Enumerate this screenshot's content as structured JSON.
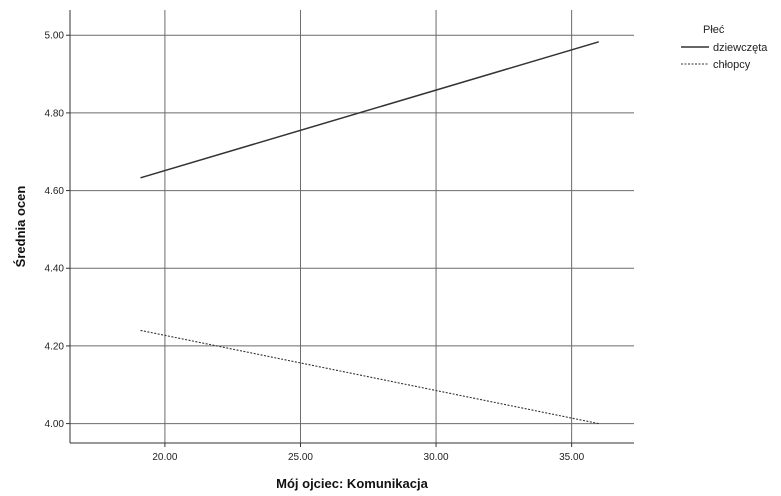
{
  "chart_data": {
    "type": "line",
    "xlabel": "Mój ojciec: Komunikacja",
    "ylabel": "Średnia ocen",
    "xlim": [
      16.5,
      37.3
    ],
    "ylim": [
      3.95,
      5.065
    ],
    "xticks": [
      20,
      25,
      30,
      35
    ],
    "xtick_labels": [
      "20.00",
      "25.00",
      "30.00",
      "35.00"
    ],
    "yticks": [
      4.0,
      4.2,
      4.4,
      4.6,
      4.8,
      5.0
    ],
    "ytick_labels": [
      "4.00",
      "4.20",
      "4.40",
      "4.60",
      "4.80",
      "5.00"
    ],
    "grid": true,
    "legend": {
      "title": "Płeć",
      "position": "top-right outside"
    },
    "series": [
      {
        "name": "dziewczęta",
        "style": "solid",
        "color": "#333333",
        "x": [
          19.1,
          36.0
        ],
        "y": [
          4.633,
          4.983
        ]
      },
      {
        "name": "chłopcy",
        "style": "dashed",
        "color": "#333333",
        "x": [
          19.1,
          36.0
        ],
        "y": [
          4.24,
          4.0
        ]
      }
    ]
  }
}
